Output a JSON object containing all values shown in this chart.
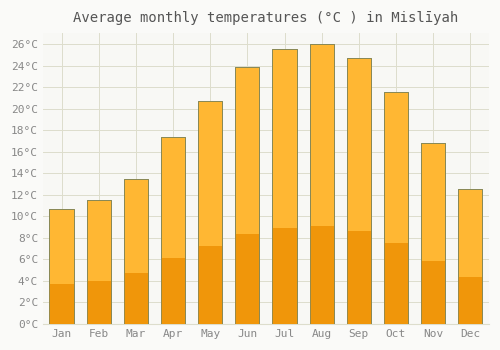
{
  "title": "Average monthly temperatures (°C ) in Mislīyah",
  "months": [
    "Jan",
    "Feb",
    "Mar",
    "Apr",
    "May",
    "Jun",
    "Jul",
    "Aug",
    "Sep",
    "Oct",
    "Nov",
    "Dec"
  ],
  "values": [
    10.7,
    11.5,
    13.5,
    17.4,
    20.7,
    23.9,
    25.5,
    26.0,
    24.7,
    21.5,
    16.8,
    12.5
  ],
  "bar_color_top": "#FFB733",
  "bar_color_bottom": "#F0960A",
  "bar_edge_color": "#888855",
  "background_color": "#FAFAF8",
  "plot_bg_color": "#F8F8F5",
  "grid_color": "#DDDDCC",
  "text_color": "#888888",
  "title_color": "#555555",
  "ylim": [
    0,
    27
  ],
  "yticks": [
    0,
    2,
    4,
    6,
    8,
    10,
    12,
    14,
    16,
    18,
    20,
    22,
    24,
    26
  ],
  "title_fontsize": 10,
  "tick_fontsize": 8,
  "font_family": "monospace",
  "bar_width": 0.65
}
